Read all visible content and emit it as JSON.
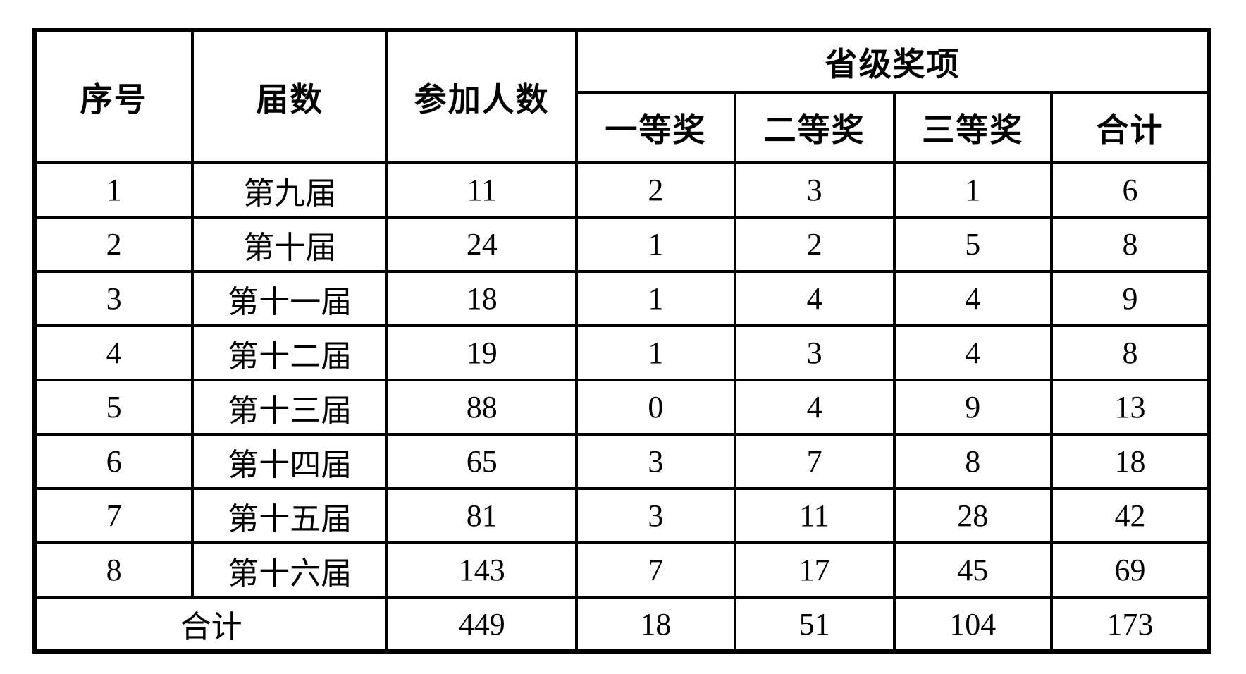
{
  "colors": {
    "background": "#ffffff",
    "border": "#000000",
    "text": "#000000"
  },
  "table": {
    "header": {
      "serial": "序号",
      "session": "届数",
      "participants": "参加人数",
      "provincial_group": "省级奖项",
      "first_prize": "一等奖",
      "second_prize": "二等奖",
      "third_prize": "三等奖",
      "subtotal": "合计"
    },
    "rows": [
      {
        "serial": "1",
        "session": "第九届",
        "participants": "11",
        "first": "2",
        "second": "3",
        "third": "1",
        "total": "6"
      },
      {
        "serial": "2",
        "session": "第十届",
        "participants": "24",
        "first": "1",
        "second": "2",
        "third": "5",
        "total": "8"
      },
      {
        "serial": "3",
        "session": "第十一届",
        "participants": "18",
        "first": "1",
        "second": "4",
        "third": "4",
        "total": "9"
      },
      {
        "serial": "4",
        "session": "第十二届",
        "participants": "19",
        "first": "1",
        "second": "3",
        "third": "4",
        "total": "8"
      },
      {
        "serial": "5",
        "session": "第十三届",
        "participants": "88",
        "first": "0",
        "second": "4",
        "third": "9",
        "total": "13"
      },
      {
        "serial": "6",
        "session": "第十四届",
        "participants": "65",
        "first": "3",
        "second": "7",
        "third": "8",
        "total": "18"
      },
      {
        "serial": "7",
        "session": "第十五届",
        "participants": "81",
        "first": "3",
        "second": "11",
        "third": "28",
        "total": "42"
      },
      {
        "serial": "8",
        "session": "第十六届",
        "participants": "143",
        "first": "7",
        "second": "17",
        "third": "45",
        "total": "69"
      }
    ],
    "footer": {
      "label": "合计",
      "participants": "449",
      "first": "18",
      "second": "51",
      "third": "104",
      "total": "173"
    }
  }
}
